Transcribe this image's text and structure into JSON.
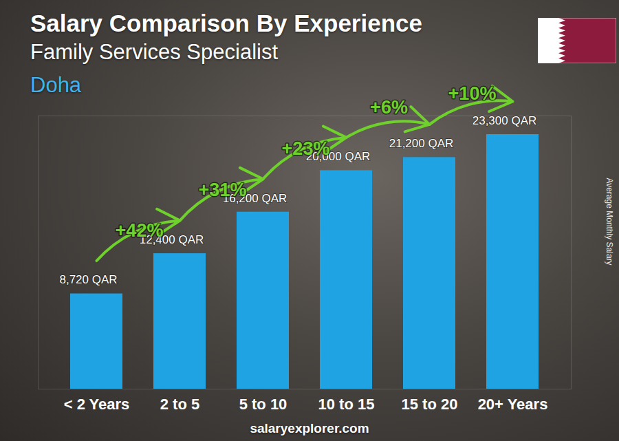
{
  "chart_data": {
    "type": "bar",
    "title": "Salary Comparison By Experience",
    "subtitle": "Family Services Specialist",
    "location": "Doha",
    "y_label": "Average Monthly Salary",
    "footer": "salaryexplorer.com",
    "categories": [
      "< 2 Years",
      "2 to 5",
      "5 to 10",
      "10 to 15",
      "15 to 20",
      "20+ Years"
    ],
    "values": [
      8720,
      12400,
      16200,
      20000,
      21200,
      23300
    ],
    "value_labels": [
      "8,720 QAR",
      "12,400 QAR",
      "16,200 QAR",
      "20,000 QAR",
      "21,200 QAR",
      "23,300 QAR"
    ],
    "annotations": [
      "+42%",
      "+31%",
      "+23%",
      "+6%",
      "+10%"
    ],
    "color": "#1fa3e3",
    "ylim": [
      0,
      25000
    ],
    "yticks": [],
    "tick_labels": "x",
    "data_labels": true,
    "grid": false
  }
}
